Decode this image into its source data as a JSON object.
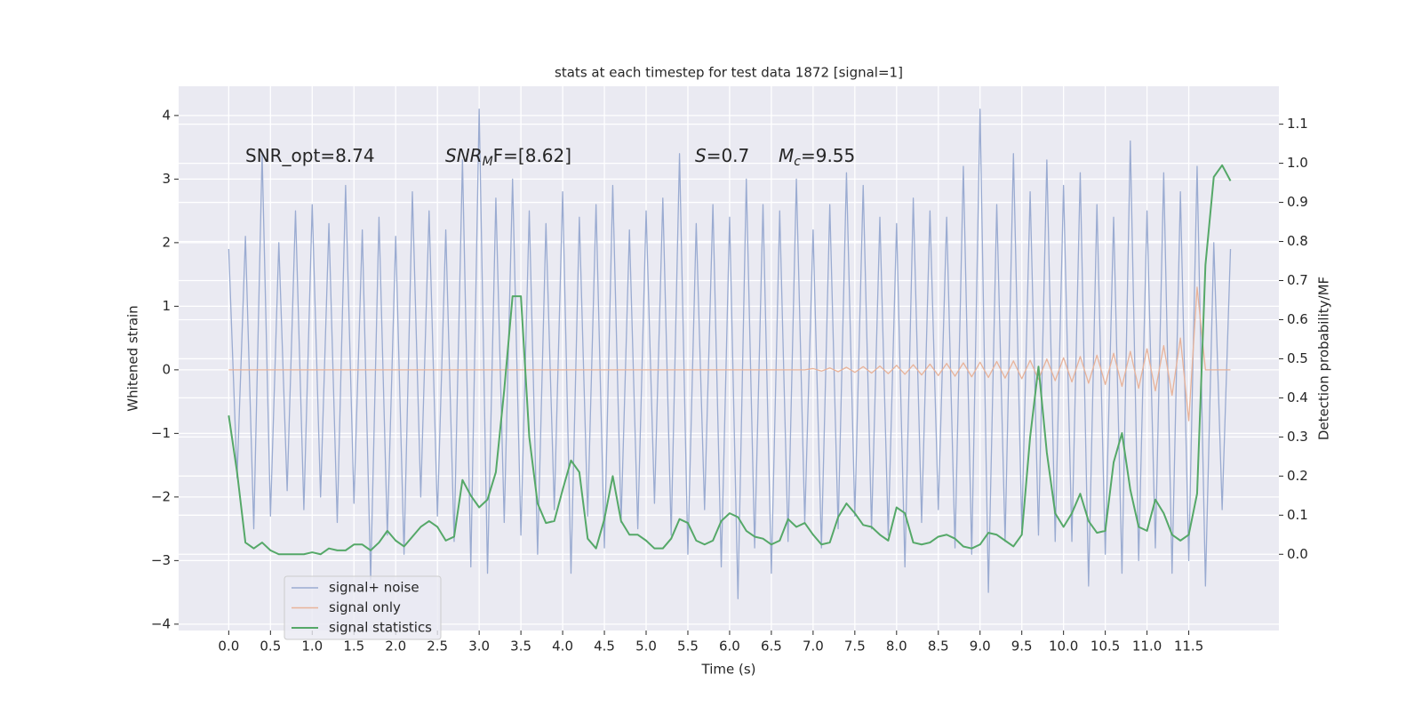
{
  "chart_data": {
    "type": "line",
    "title": "stats at each timestep for test data 1872 [signal=1]",
    "xlabel": "Time (s)",
    "ylabel": "Whitened strain",
    "y2label": "Detection probability/MF",
    "annotations": [
      {
        "base": "SNR_opt=8.74"
      },
      {
        "base": "SNR",
        "sub": "M",
        "rest": "F=[8.62]"
      },
      {
        "base": "S",
        "rest": "=0.7"
      },
      {
        "base": "M",
        "sub": "c",
        "rest": "=9.55"
      }
    ],
    "x": [
      0.0,
      0.1,
      0.2,
      0.3,
      0.4,
      0.5,
      0.6,
      0.7,
      0.8,
      0.9,
      1.0,
      1.1,
      1.2,
      1.3,
      1.4,
      1.5,
      1.6,
      1.7,
      1.8,
      1.9,
      2.0,
      2.1,
      2.2,
      2.3,
      2.4,
      2.5,
      2.6,
      2.7,
      2.8,
      2.9,
      3.0,
      3.1,
      3.2,
      3.3,
      3.4,
      3.5,
      3.6,
      3.7,
      3.8,
      3.9,
      4.0,
      4.1,
      4.2,
      4.3,
      4.4,
      4.5,
      4.6,
      4.7,
      4.8,
      4.9,
      5.0,
      5.1,
      5.2,
      5.3,
      5.4,
      5.5,
      5.6,
      5.7,
      5.8,
      5.9,
      6.0,
      6.1,
      6.2,
      6.3,
      6.4,
      6.5,
      6.6,
      6.7,
      6.8,
      6.9,
      7.0,
      7.1,
      7.2,
      7.3,
      7.4,
      7.5,
      7.6,
      7.7,
      7.8,
      7.9,
      8.0,
      8.1,
      8.2,
      8.3,
      8.4,
      8.5,
      8.6,
      8.7,
      8.8,
      8.9,
      9.0,
      9.1,
      9.2,
      9.3,
      9.4,
      9.5,
      9.6,
      9.7,
      9.8,
      9.9,
      10.0,
      10.1,
      10.2,
      10.3,
      10.4,
      10.5,
      10.6,
      10.7,
      10.8,
      10.9,
      11.0,
      11.1,
      11.2,
      11.3,
      11.4,
      11.5,
      11.6,
      11.7,
      11.8,
      11.9,
      12.0
    ],
    "series": [
      {
        "name": "signal+ noise",
        "color": "#9aabd1",
        "values": [
          1.9,
          -1.7,
          2.1,
          -2.5,
          3.4,
          -2.3,
          2.0,
          -1.9,
          2.5,
          -2.2,
          2.6,
          -2.0,
          2.3,
          -2.4,
          2.9,
          -2.1,
          2.2,
          -3.3,
          2.4,
          -2.6,
          2.1,
          -2.9,
          2.8,
          -2.0,
          2.5,
          -2.3,
          2.2,
          -2.7,
          3.3,
          -3.1,
          4.1,
          -3.2,
          2.7,
          -2.4,
          3.0,
          -2.6,
          2.5,
          -2.9,
          2.3,
          -2.2,
          2.8,
          -3.2,
          2.4,
          -2.3,
          2.6,
          -2.8,
          2.9,
          -2.4,
          2.2,
          -2.5,
          2.5,
          -2.1,
          2.7,
          -2.6,
          3.4,
          -2.9,
          2.3,
          -2.2,
          2.6,
          -3.1,
          2.4,
          -3.6,
          3.0,
          -2.8,
          2.6,
          -3.2,
          2.5,
          -2.7,
          3.0,
          -2.4,
          2.2,
          -2.8,
          2.6,
          -2.5,
          3.1,
          -2.3,
          2.9,
          -2.5,
          2.4,
          -2.6,
          2.3,
          -3.1,
          2.7,
          -2.4,
          2.5,
          -2.2,
          2.4,
          -2.8,
          3.2,
          -2.9,
          4.1,
          -3.5,
          2.6,
          -2.7,
          3.4,
          -2.5,
          2.8,
          -2.6,
          3.3,
          -2.7,
          2.9,
          -2.7,
          3.1,
          -3.4,
          2.6,
          -2.9,
          2.4,
          -3.2,
          3.6,
          -3.0,
          2.5,
          -2.8,
          3.1,
          -3.2,
          2.8,
          -3.0,
          3.2,
          -3.4,
          2.0,
          -2.2,
          1.9
        ]
      },
      {
        "name": "signal only",
        "color": "#e8b39a",
        "values": [
          0,
          0,
          0,
          0,
          0,
          0,
          0,
          0,
          0,
          0,
          0,
          0,
          0,
          0,
          0,
          0,
          0,
          0,
          0,
          0,
          0,
          0,
          0,
          0,
          0,
          0,
          0,
          0,
          0,
          0,
          0,
          0,
          0,
          0,
          0,
          0,
          0,
          0,
          0,
          0,
          0,
          0,
          0,
          0,
          0,
          0,
          0,
          0,
          0,
          0,
          0,
          0,
          0,
          0,
          0,
          0,
          0,
          0,
          0,
          0,
          0,
          0,
          0,
          0,
          0,
          0,
          0,
          0,
          0,
          0,
          0.02,
          -0.02,
          0.03,
          -0.03,
          0.04,
          -0.04,
          0.05,
          -0.05,
          0.06,
          -0.06,
          0.07,
          -0.07,
          0.08,
          -0.08,
          0.09,
          -0.09,
          0.1,
          -0.1,
          0.11,
          -0.11,
          0.12,
          -0.12,
          0.13,
          -0.13,
          0.14,
          -0.14,
          0.15,
          -0.15,
          0.17,
          -0.17,
          0.19,
          -0.19,
          0.21,
          -0.21,
          0.23,
          -0.23,
          0.26,
          -0.26,
          0.29,
          -0.29,
          0.33,
          -0.33,
          0.38,
          -0.4,
          0.5,
          -0.8,
          1.3,
          0,
          0,
          0,
          0
        ]
      },
      {
        "name": "signal statistics",
        "color": "#55a868",
        "axis": "y2",
        "values": [
          0.355,
          0.21,
          0.03,
          0.015,
          0.03,
          0.01,
          0.0,
          0.0,
          0.0,
          0.0,
          0.005,
          0.0,
          0.015,
          0.01,
          0.01,
          0.025,
          0.025,
          0.01,
          0.03,
          0.06,
          0.035,
          0.02,
          0.045,
          0.07,
          0.085,
          0.07,
          0.035,
          0.045,
          0.19,
          0.15,
          0.12,
          0.14,
          0.21,
          0.42,
          0.66,
          0.66,
          0.3,
          0.13,
          0.08,
          0.085,
          0.165,
          0.24,
          0.21,
          0.04,
          0.015,
          0.09,
          0.2,
          0.085,
          0.05,
          0.05,
          0.035,
          0.015,
          0.015,
          0.04,
          0.09,
          0.08,
          0.035,
          0.025,
          0.035,
          0.085,
          0.105,
          0.095,
          0.06,
          0.045,
          0.04,
          0.025,
          0.035,
          0.09,
          0.07,
          0.08,
          0.05,
          0.025,
          0.03,
          0.095,
          0.13,
          0.105,
          0.075,
          0.07,
          0.05,
          0.035,
          0.12,
          0.105,
          0.03,
          0.025,
          0.03,
          0.045,
          0.05,
          0.04,
          0.02,
          0.015,
          0.025,
          0.055,
          0.05,
          0.035,
          0.02,
          0.05,
          0.3,
          0.48,
          0.26,
          0.105,
          0.07,
          0.105,
          0.155,
          0.085,
          0.055,
          0.06,
          0.235,
          0.31,
          0.165,
          0.07,
          0.06,
          0.14,
          0.105,
          0.05,
          0.035,
          0.05,
          0.155,
          0.74,
          0.965,
          0.995,
          0.955
        ]
      }
    ],
    "xlim": [
      -0.6,
      12.58
    ],
    "ylim": [
      -4.1,
      4.46
    ],
    "y2lim": [
      -0.195,
      1.197
    ],
    "xticks": [
      {
        "value": 0,
        "label": "0.0"
      },
      0.5,
      {
        "value": 1,
        "label": "1.0"
      },
      1.5,
      {
        "value": 2,
        "label": "2.0"
      },
      2.5,
      {
        "value": 3,
        "label": "3.0"
      },
      3.5,
      {
        "value": 4,
        "label": "4.0"
      },
      4.5,
      {
        "value": 5,
        "label": "5.0"
      },
      5.5,
      {
        "value": 6,
        "label": "6.0"
      },
      6.5,
      {
        "value": 7,
        "label": "7.0"
      },
      7.5,
      {
        "value": 8,
        "label": "8.0"
      },
      8.5,
      {
        "value": 9,
        "label": "9.0"
      },
      9.5,
      {
        "value": 10,
        "label": "10.0"
      },
      10.5,
      {
        "value": 11,
        "label": "11.0"
      },
      11.5
    ],
    "yticks": [
      {
        "value": -4,
        "label": "−4"
      },
      {
        "value": -3,
        "label": "−3"
      },
      {
        "value": -2,
        "label": "−2"
      },
      {
        "value": -1,
        "label": "−1"
      },
      0,
      1,
      2,
      3,
      4
    ],
    "y2ticks": [
      {
        "value": 0,
        "label": "0.0"
      },
      0.1,
      0.2,
      0.3,
      0.4,
      0.5,
      0.6,
      0.7,
      0.8,
      0.9,
      {
        "value": 1,
        "label": "1.0"
      },
      1.1
    ],
    "grid": true,
    "legend": "lower left"
  }
}
